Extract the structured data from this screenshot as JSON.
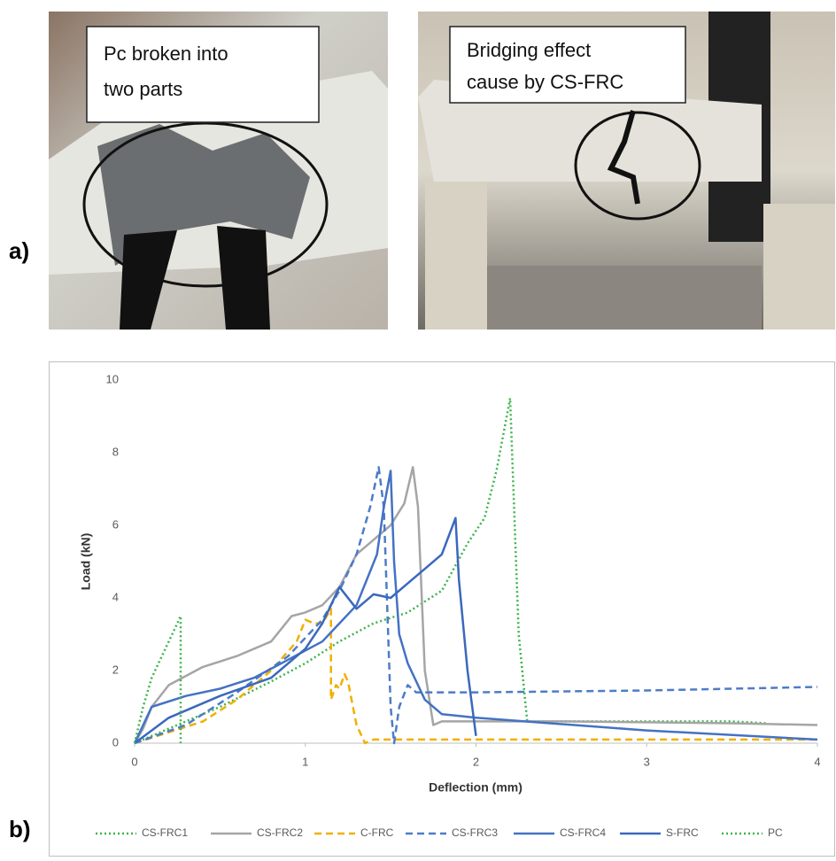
{
  "panel_labels": [
    "a)",
    "b)"
  ],
  "callouts": [
    {
      "lines": [
        "Pc broken into",
        "two parts"
      ]
    },
    {
      "lines": [
        "Bridging effect",
        "cause by CS-FRC"
      ]
    }
  ],
  "chart_data": {
    "type": "line",
    "x_label": "Deflection (mm)",
    "y_label": "Load (kN)",
    "xlim": [
      0,
      4
    ],
    "xticks": [
      0,
      1,
      2,
      3,
      4
    ],
    "ylim": [
      0,
      10
    ],
    "yticks": [
      0,
      2,
      4,
      6,
      8,
      10
    ],
    "grid": false,
    "legend": "bottom",
    "series": [
      {
        "name": "CS-FRC1",
        "color": "#3cb44b",
        "style": "dotted",
        "x": [
          0,
          0.2,
          0.5,
          0.8,
          1.0,
          1.2,
          1.4,
          1.6,
          1.8,
          1.95,
          2.05,
          2.12,
          2.18,
          2.2,
          2.25,
          2.3,
          2.5,
          3.0,
          3.5,
          3.7
        ],
        "values": [
          0,
          0.4,
          1.0,
          1.7,
          2.2,
          2.8,
          3.3,
          3.6,
          4.2,
          5.5,
          6.2,
          7.5,
          9.0,
          9.5,
          3.0,
          0.6,
          0.6,
          0.6,
          0.6,
          0.55
        ]
      },
      {
        "name": "CS-FRC2",
        "color": "#a5a5a5",
        "style": "solid",
        "x": [
          0,
          0.05,
          0.1,
          0.2,
          0.4,
          0.6,
          0.8,
          0.92,
          1.0,
          1.1,
          1.2,
          1.3,
          1.4,
          1.5,
          1.58,
          1.63,
          1.66,
          1.7,
          1.75,
          1.8,
          2.5,
          3.5,
          4.0
        ],
        "values": [
          0,
          0.4,
          1.0,
          1.6,
          2.1,
          2.4,
          2.8,
          3.5,
          3.6,
          3.8,
          4.3,
          5.2,
          5.6,
          6.0,
          6.6,
          7.6,
          6.5,
          2.0,
          0.5,
          0.6,
          0.6,
          0.55,
          0.5
        ]
      },
      {
        "name": "C-FRC",
        "color": "#f0b000",
        "style": "dashed",
        "x": [
          0,
          0.2,
          0.4,
          0.6,
          0.8,
          0.95,
          1.0,
          1.05,
          1.1,
          1.15,
          1.15,
          1.18,
          1.2,
          1.23,
          1.25,
          1.3,
          1.35,
          1.4,
          2,
          3,
          4
        ],
        "values": [
          0,
          0.3,
          0.6,
          1.2,
          2.0,
          2.8,
          3.4,
          3.3,
          3.3,
          3.7,
          1.2,
          1.6,
          1.5,
          1.9,
          1.7,
          0.5,
          0,
          0.1,
          0.1,
          0.1,
          0.1
        ]
      },
      {
        "name": "CS-FRC3",
        "color": "#4d7cc7",
        "style": "dashed",
        "x": [
          0,
          0.3,
          0.6,
          0.9,
          1.1,
          1.2,
          1.3,
          1.38,
          1.43,
          1.46,
          1.5,
          1.52,
          1.55,
          1.6,
          1.65,
          1.75,
          2,
          3,
          4
        ],
        "values": [
          0,
          0.5,
          1.4,
          2.4,
          3.4,
          4.2,
          5.2,
          6.5,
          7.6,
          6.5,
          1.0,
          0,
          1.0,
          1.6,
          1.4,
          1.4,
          1.4,
          1.45,
          1.55
        ]
      },
      {
        "name": "CS-FRC4",
        "color": "#4472c4",
        "style": "solid",
        "x": [
          0,
          0.1,
          0.3,
          0.5,
          0.7,
          0.9,
          1.1,
          1.3,
          1.42,
          1.46,
          1.5,
          1.52,
          1.55,
          1.6,
          1.7,
          1.8,
          2.0,
          3.0,
          4.0
        ],
        "values": [
          0,
          1.0,
          1.3,
          1.5,
          1.8,
          2.3,
          2.8,
          3.8,
          5.2,
          6.5,
          7.5,
          5.0,
          3.0,
          2.2,
          1.2,
          0.8,
          0.7,
          0.35,
          0.1
        ]
      },
      {
        "name": "S-FRC",
        "color": "#3a68bd",
        "style": "solid",
        "x": [
          0,
          0.2,
          0.5,
          0.8,
          1.0,
          1.1,
          1.15,
          1.2,
          1.3,
          1.4,
          1.5,
          1.6,
          1.7,
          1.8,
          1.88,
          1.9,
          1.95,
          2.0
        ],
        "values": [
          0,
          0.7,
          1.3,
          1.8,
          2.6,
          3.3,
          3.8,
          4.3,
          3.7,
          4.1,
          4.0,
          4.4,
          4.8,
          5.2,
          6.2,
          4.5,
          2.0,
          0.2
        ]
      },
      {
        "name": "PC",
        "color": "#3cb44b",
        "style": "dotted",
        "x": [
          0,
          0.05,
          0.1,
          0.15,
          0.2,
          0.25,
          0.27,
          0.27
        ],
        "values": [
          0,
          1.0,
          1.8,
          2.3,
          2.8,
          3.3,
          3.5,
          0
        ]
      }
    ]
  }
}
